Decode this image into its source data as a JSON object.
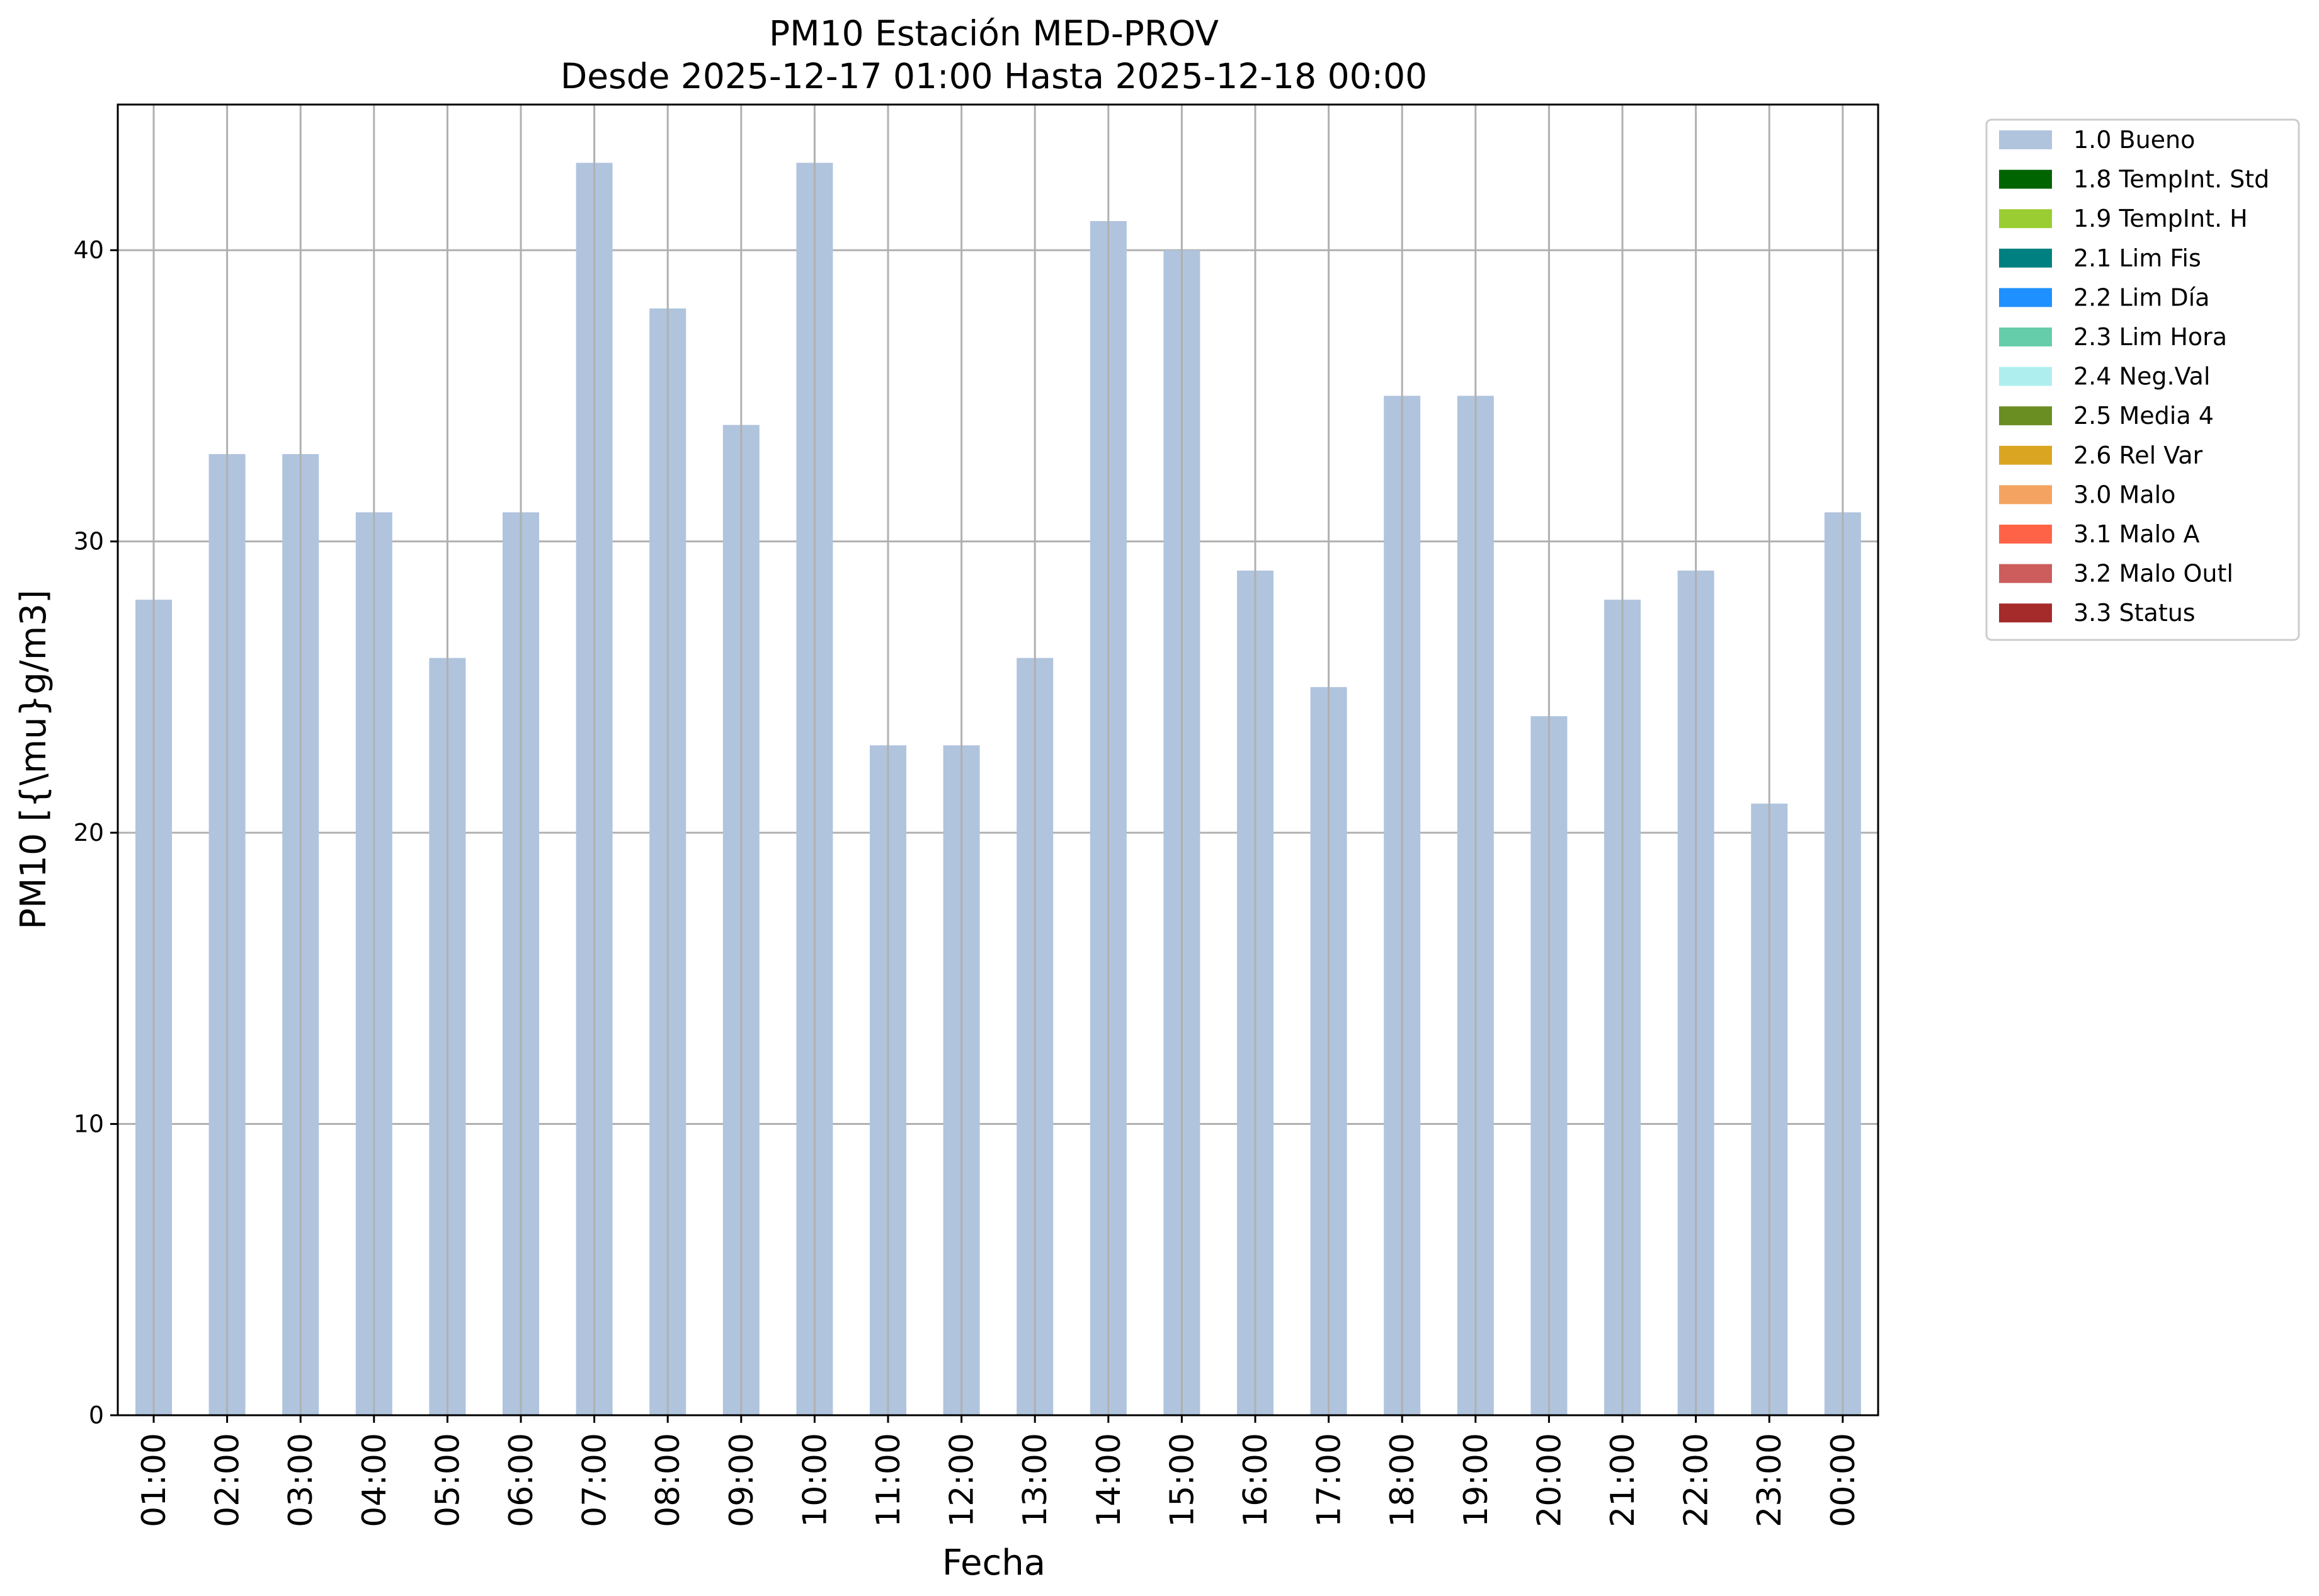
{
  "chart_data": {
    "type": "bar",
    "title": "PM10 Estación MED-PROV",
    "subtitle": "Desde 2025-12-17 01:00 Hasta 2025-12-18 00:00",
    "xlabel": "Fecha",
    "ylabel": "PM10 [{\\mu}g/m3]",
    "ylim": [
      0,
      45
    ],
    "yticks": [
      "0",
      "10",
      "20",
      "30",
      "40"
    ],
    "grid": true,
    "legend_placement": "outside-right-top",
    "categories": [
      "01:00",
      "02:00",
      "03:00",
      "04:00",
      "05:00",
      "06:00",
      "07:00",
      "08:00",
      "09:00",
      "10:00",
      "11:00",
      "12:00",
      "13:00",
      "14:00",
      "15:00",
      "16:00",
      "17:00",
      "18:00",
      "19:00",
      "20:00",
      "21:00",
      "22:00",
      "23:00",
      "00:00"
    ],
    "series": [
      {
        "name": "1.0 Bueno",
        "color": "#b0c4de",
        "values": [
          28,
          33,
          33,
          31,
          26,
          31,
          43,
          38,
          34,
          43,
          23,
          23,
          26,
          41,
          40,
          29,
          25,
          35,
          35,
          24,
          28,
          29,
          21,
          31
        ]
      }
    ],
    "legend": [
      {
        "label": "1.0 Bueno",
        "color": "#b0c4de"
      },
      {
        "label": "1.8 TempInt. Std",
        "color": "#006400"
      },
      {
        "label": "1.9 TempInt. H",
        "color": "#9acd32"
      },
      {
        "label": "2.1 Lim Fis",
        "color": "#008080"
      },
      {
        "label": "2.2 Lim Día",
        "color": "#1e90ff"
      },
      {
        "label": "2.3 Lim Hora",
        "color": "#66cdaa"
      },
      {
        "label": "2.4 Neg.Val",
        "color": "#afeeee"
      },
      {
        "label": "2.5 Media 4",
        "color": "#6b8e23"
      },
      {
        "label": "2.6 Rel Var",
        "color": "#daa520"
      },
      {
        "label": "3.0 Malo",
        "color": "#f4a460"
      },
      {
        "label": "3.1 Malo A",
        "color": "#ff6347"
      },
      {
        "label": "3.2 Malo Outl",
        "color": "#cd5c5c"
      },
      {
        "label": "3.3 Status",
        "color": "#a52a2a"
      }
    ]
  }
}
